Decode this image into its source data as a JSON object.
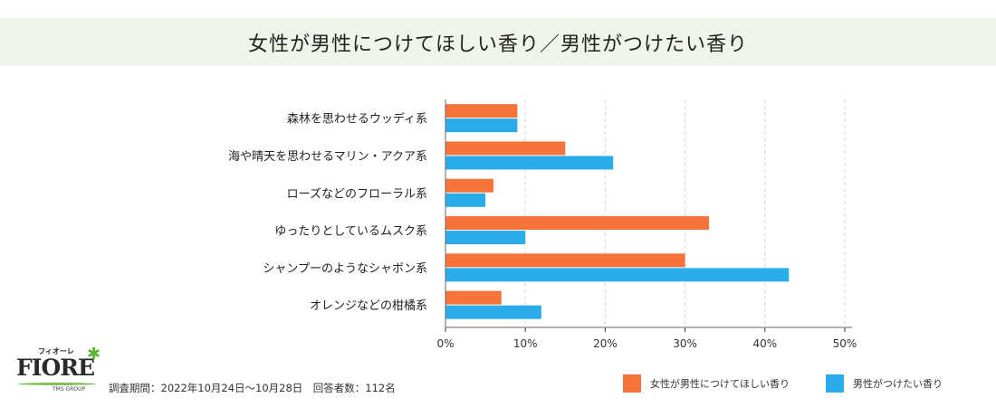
{
  "chart_data": {
    "type": "bar",
    "orientation": "horizontal",
    "title": "女性が男性につけてほしい香り／男性がつけたい香り",
    "categories": [
      "森林を思わせるウッディ系",
      "海や晴天を思わせるマリン・アクア系",
      "ローズなどのフローラル系",
      "ゆったりとしているムスク系",
      "シャンプーのようなシャボン系",
      "オレンジなどの柑橘系"
    ],
    "series": [
      {
        "name": "女性が男性につけてほしい香り",
        "color": "#f7733a",
        "values": [
          9,
          15,
          6,
          33,
          30,
          7
        ]
      },
      {
        "name": "男性がつけたい香り",
        "color": "#2aaceb",
        "values": [
          9,
          21,
          5,
          10,
          43,
          12
        ]
      }
    ],
    "xlim": [
      0,
      50
    ],
    "xticks": [
      0,
      10,
      20,
      30,
      40,
      50
    ],
    "xtick_labels": [
      "0%",
      "10%",
      "20%",
      "30%",
      "40%",
      "50%"
    ],
    "grid": true,
    "legend": "bottom-right"
  },
  "footer": {
    "note": "調査期間：2022年10月24日〜10月28日　回答者数：112名",
    "logo": {
      "name": "FIORE",
      "kana": "フィオーレ",
      "group": "TMS GROUP"
    }
  }
}
